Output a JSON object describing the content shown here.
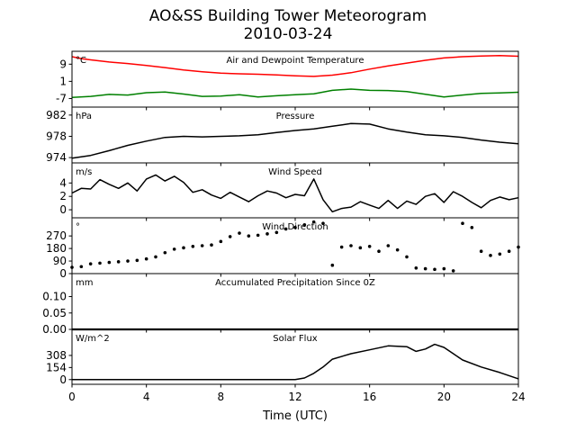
{
  "chart_data": {
    "type": "line",
    "title": "AO&SS Building Tower Meteorogram",
    "subtitle": "2010-03-24",
    "xlabel": "Time (UTC)",
    "x_ticks": [
      0,
      4,
      8,
      12,
      16,
      20,
      24
    ],
    "xlim": [
      0,
      24
    ],
    "grid": false,
    "panels": [
      {
        "title": "Air and Dewpoint Temperature",
        "unit": "°C",
        "ylim": [
          -11,
          15
        ],
        "yticks": [
          9,
          1,
          -7
        ],
        "series": [
          {
            "color": "#ff0000",
            "style": "line",
            "x": [
              0,
              0.5,
              1,
              2,
              3,
              4,
              5,
              6,
              7,
              8,
              9,
              10,
              11,
              12,
              13,
              14,
              15,
              16,
              17,
              18,
              19,
              20,
              21,
              22,
              23,
              24
            ],
            "y": [
              12.5,
              11.6,
              11,
              10,
              9.3,
              8.4,
              7.4,
              6.3,
              5.5,
              4.8,
              4.5,
              4.3,
              4.0,
              3.6,
              3.3,
              3.9,
              5.0,
              6.7,
              8.2,
              9.5,
              10.8,
              11.9,
              12.5,
              12.8,
              13.0,
              12.7
            ]
          },
          {
            "color": "#008000",
            "style": "line",
            "x": [
              0,
              1,
              2,
              3,
              4,
              5,
              6,
              7,
              8,
              9,
              10,
              11,
              12,
              13,
              14,
              15,
              16,
              17,
              18,
              19,
              20,
              21,
              22,
              23,
              24
            ],
            "y": [
              -6.5,
              -6,
              -5.1,
              -5.4,
              -4.3,
              -4.0,
              -4.9,
              -6.0,
              -5.9,
              -5.2,
              -6.3,
              -5.7,
              -5.2,
              -4.8,
              -3.2,
              -2.6,
              -3.2,
              -3.3,
              -3.8,
              -5.0,
              -6.3,
              -5.4,
              -4.6,
              -4.4,
              -4.1
            ]
          }
        ]
      },
      {
        "title": "Pressure",
        "unit": "hPa",
        "ylim": [
          973,
          983.5
        ],
        "yticks": [
          982,
          978,
          974
        ],
        "series": [
          {
            "color": "#000000",
            "style": "line",
            "x": [
              0,
              1,
              2,
              3,
              4,
              5,
              6,
              7,
              8,
              9,
              10,
              11,
              12,
              13,
              14,
              15,
              16,
              17,
              18,
              19,
              20,
              21,
              22,
              23,
              24
            ],
            "y": [
              973.9,
              974.4,
              975.3,
              976.3,
              977.1,
              977.8,
              978.0,
              977.9,
              978.0,
              978.1,
              978.3,
              978.7,
              979.1,
              979.4,
              979.9,
              980.4,
              980.3,
              979.4,
              978.8,
              978.3,
              978.1,
              977.8,
              977.3,
              976.9,
              976.6
            ]
          }
        ]
      },
      {
        "title": "Wind Speed",
        "unit": "m/s",
        "ylim": [
          -1.2,
          7
        ],
        "yticks": [
          4,
          2,
          0
        ],
        "series": [
          {
            "color": "#000000",
            "style": "line",
            "x": [
              0,
              0.5,
              1,
              1.5,
              2,
              2.5,
              3,
              3.5,
              4,
              4.5,
              5,
              5.5,
              6,
              6.5,
              7,
              7.5,
              8,
              8.5,
              9,
              9.5,
              10,
              10.5,
              11,
              11.5,
              12,
              12.5,
              13,
              13.5,
              14,
              14.5,
              15,
              15.5,
              16,
              16.5,
              17,
              17.5,
              18,
              18.5,
              19,
              19.5,
              20,
              20.5,
              21,
              21.5,
              22,
              22.5,
              23,
              23.5,
              24
            ],
            "y": [
              2.5,
              3.2,
              3.1,
              4.5,
              3.8,
              3.2,
              4.0,
              2.8,
              4.6,
              5.2,
              4.3,
              5.0,
              4.1,
              2.6,
              3.0,
              2.2,
              1.7,
              2.6,
              1.9,
              1.2,
              2.1,
              2.8,
              2.5,
              1.8,
              2.3,
              2.1,
              4.6,
              1.5,
              -0.3,
              0.2,
              0.4,
              1.2,
              0.7,
              0.2,
              1.4,
              0.2,
              1.3,
              0.8,
              2.0,
              2.4,
              1.1,
              2.7,
              2.0,
              1.1,
              0.3,
              1.4,
              1.9,
              1.5,
              1.8
            ]
          }
        ]
      },
      {
        "title": "Wind Direction",
        "unit": "°",
        "ylim": [
          0,
          400
        ],
        "yticks": [
          270,
          180,
          90,
          0
        ],
        "series": [
          {
            "color": "#000000",
            "style": "dots",
            "x": [
              0,
              0.5,
              1,
              1.5,
              2,
              2.5,
              3,
              3.5,
              4,
              4.5,
              5,
              5.5,
              6,
              6.5,
              7,
              7.5,
              8,
              8.5,
              9,
              9.5,
              10,
              10.5,
              11,
              11.5,
              12,
              12.5,
              13,
              13.5,
              14,
              14.5,
              15,
              15.5,
              16,
              16.5,
              17,
              17.5,
              18,
              18.5,
              19,
              19.5,
              20,
              20.5,
              21,
              21.5,
              22,
              22.5,
              23,
              23.5,
              24
            ],
            "y": [
              45,
              50,
              70,
              75,
              80,
              85,
              90,
              95,
              105,
              120,
              150,
              175,
              185,
              195,
              200,
              205,
              230,
              265,
              290,
              270,
              275,
              285,
              295,
              320,
              330,
              350,
              370,
              360,
              60,
              190,
              200,
              185,
              195,
              160,
              200,
              170,
              120,
              40,
              35,
              30,
              35,
              20,
              360,
              330,
              160,
              130,
              140,
              160,
              190
            ]
          }
        ]
      },
      {
        "title": "Accumulated Precipitation Since 0Z",
        "unit": "mm",
        "ylim": [
          0,
          0.17
        ],
        "yticks": [
          0.1,
          0.05,
          0.0
        ],
        "ytick_labels": [
          "0.10",
          "0.05",
          "0.00"
        ],
        "series": [
          {
            "color": "#000000",
            "style": "line",
            "x": [
              0,
              24
            ],
            "y": [
              0,
              0
            ]
          }
        ]
      },
      {
        "title": "Solar Flux",
        "unit": "W/m^2",
        "ylim": [
          -60,
          640
        ],
        "yticks": [
          308,
          154,
          0
        ],
        "series": [
          {
            "color": "#000000",
            "style": "line",
            "x": [
              0,
              1,
              2,
              3,
              4,
              5,
              6,
              7,
              8,
              9,
              10,
              11,
              12,
              12.5,
              13,
              13.5,
              14,
              15,
              16,
              17,
              18,
              18.5,
              19,
              19.5,
              20,
              20.5,
              21,
              22,
              23,
              24
            ],
            "y": [
              0,
              0,
              0,
              0,
              0,
              0,
              0,
              0,
              0,
              0,
              0,
              0,
              0,
              20,
              80,
              160,
              260,
              330,
              380,
              430,
              420,
              360,
              390,
              450,
              410,
              330,
              250,
              160,
              90,
              10
            ]
          }
        ]
      }
    ]
  }
}
